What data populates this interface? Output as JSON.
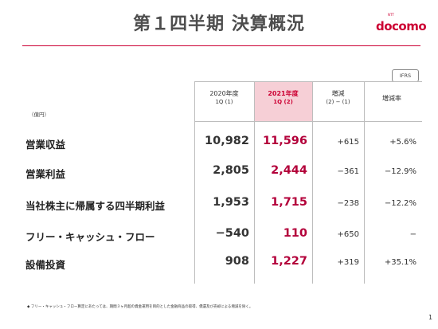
{
  "header": {
    "title": "第１四半期 決算概況",
    "logo_text": "docomo",
    "logo_prefix": "NTT",
    "accent_color": "#cc0033",
    "badge": "IFRS"
  },
  "table": {
    "unit_label": "（億円）",
    "columns": [
      {
        "label": "2020年度",
        "sub": "1Q (1)"
      },
      {
        "label": "2021年度",
        "sub": "1Q (2)"
      },
      {
        "label": "増減",
        "sub": "(2) − (1)"
      },
      {
        "label": "増減率",
        "sub": ""
      }
    ],
    "rows": [
      {
        "label": "営業収益",
        "v2020": "10,982",
        "v2021": "11,596",
        "diff": "+615",
        "rate": "+5.6%"
      },
      {
        "label": "営業利益",
        "v2020": "2,805",
        "v2021": "2,444",
        "diff": "−361",
        "rate": "−12.9%"
      },
      {
        "label": "当社株主に帰属する四半期利益",
        "v2020": "1,953",
        "v2021": "1,715",
        "diff": "−238",
        "rate": "−12.2%"
      },
      {
        "label": "フリー・キャッシュ・フロー",
        "v2020": "−540",
        "v2021": "110",
        "diff": "+650",
        "rate": "−"
      },
      {
        "label": "設備投資",
        "v2020": "908",
        "v2021": "1,227",
        "diff": "+319",
        "rate": "+35.1%"
      }
    ]
  },
  "footnote": "◆ フリー・キャッシュ・フロー算定にあたっては、期間３ヶ月超の資金運用を目的とした金融商品の取得、償還及び売却による増減を除く。",
  "page_number": "1"
}
